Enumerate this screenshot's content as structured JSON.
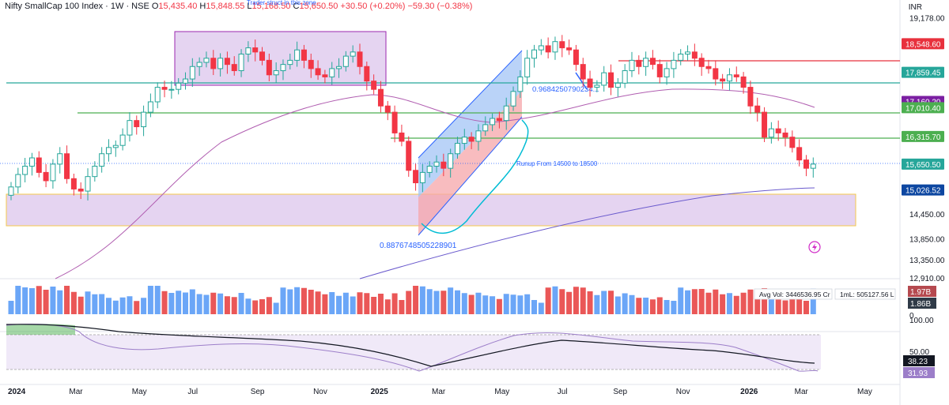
{
  "header": {
    "symbol": "Nifty SmallCap 100 Index · 1W · NSE",
    "o_label": "O",
    "open": "15,435.40",
    "h_label": "H",
    "high": "15,848.55",
    "l_label": "L",
    "low": "15,168.50",
    "c_label": "C",
    "close": "15,650.50",
    "change": "+30.50 (+0.20%)",
    "prev_change": "−59.30 (−0.38%)",
    "top_note": "Trader struct in this zone"
  },
  "currency": "INR",
  "colors": {
    "up": "#26a69a",
    "down": "#f23645",
    "ma_short": "#b05db0",
    "ma_long": "#6a5acd",
    "zone_fill": "#dcc6ec",
    "zone_border": "#f5c94b",
    "channel_blue": "#9cc0f5",
    "channel_red": "#f5a5aa",
    "line_red": "#e8313d",
    "line_teal": "#26a69a",
    "line_green": "#4caf50",
    "price_badge": "#0d47a1"
  },
  "chart_data": {
    "type": "candlestick",
    "ylim": [
      12910,
      19450
    ],
    "price_axis_ticks": [
      "19,178.00",
      "14,450.00",
      "13,850.00",
      "13,350.00",
      "12,910.00"
    ],
    "price_labels": [
      {
        "value": 18548.6,
        "text": "18,548.60",
        "color": "#e8313d"
      },
      {
        "value": 17859.45,
        "text": "17,859.45",
        "color": "#26a69a"
      },
      {
        "value": 17160.2,
        "text": "17,160.20",
        "color": "#7b1fa2"
      },
      {
        "value": 17010.4,
        "text": "17,010.40",
        "color": "#4caf50"
      },
      {
        "value": 16315.7,
        "text": "16,315.70",
        "color": "#4caf50"
      },
      {
        "value": 15650.5,
        "text": "15,650.50",
        "color": "#26a69a"
      },
      {
        "value": 15026.52,
        "text": "15,026.52",
        "color": "#0d47a1"
      }
    ],
    "x_ticks": [
      {
        "i": 0,
        "label": "2024"
      },
      {
        "i": 9,
        "label": "Mar"
      },
      {
        "i": 18,
        "label": "May"
      },
      {
        "i": 26,
        "label": "Jul"
      },
      {
        "i": 35,
        "label": "Sep"
      },
      {
        "i": 44,
        "label": "Nov"
      },
      {
        "i": 52,
        "label": "2025"
      },
      {
        "i": 61,
        "label": "Mar"
      },
      {
        "i": 70,
        "label": "May"
      },
      {
        "i": 79,
        "label": "Jul"
      },
      {
        "i": 87,
        "label": "Sep"
      },
      {
        "i": 96,
        "label": "Nov"
      },
      {
        "i": 105,
        "label": "2026"
      },
      {
        "i": 113,
        "label": "Mar"
      },
      {
        "i": 122,
        "label": "May"
      }
    ],
    "weekly_close": [
      15100,
      15400,
      15600,
      15800,
      15450,
      15250,
      15650,
      15900,
      15300,
      15050,
      15000,
      15350,
      15600,
      15900,
      16050,
      16100,
      16350,
      16700,
      16550,
      16900,
      17150,
      17500,
      17450,
      17450,
      17600,
      17700,
      18000,
      18100,
      18200,
      17950,
      18200,
      18050,
      17900,
      18300,
      18450,
      18350,
      18150,
      17800,
      17900,
      18050,
      18150,
      18400,
      18150,
      17950,
      17800,
      17750,
      17950,
      18000,
      18250,
      18350,
      18000,
      17650,
      17450,
      17050,
      16900,
      16400,
      16200,
      15500,
      15200,
      15450,
      15600,
      15700,
      15550,
      15900,
      16150,
      16300,
      16200,
      16450,
      16600,
      16750,
      16700,
      17050,
      17400,
      17750,
      18200,
      18400,
      18500,
      18350,
      18600,
      18450,
      18400,
      18050,
      17700,
      17500,
      17550,
      17850,
      17500,
      17600,
      17900,
      18150,
      18000,
      18200,
      18050,
      17750,
      17950,
      18150,
      18300,
      18350,
      18200,
      18000,
      17950,
      17700,
      17650,
      17800,
      17750,
      17500,
      17050,
      16900,
      16300,
      16500,
      16400,
      16300,
      16050,
      15750,
      15550,
      15650
    ],
    "volume_labels": {
      "avg_vol": "Avg Vol: 3446536.95 Cr",
      "ml": "1mL: 505127.56 L",
      "v1": "1.97B",
      "v2": "1.86B",
      "zero": "0"
    },
    "indicator": {
      "levels": [
        "100.00",
        "50.00"
      ],
      "values": [
        "38.23",
        "31.93"
      ]
    },
    "annotations": [
      {
        "text": "0.9684250790234..."
      },
      {
        "text": "Runup From 14500 to 18500"
      },
      {
        "text": "0.8876748505228901"
      }
    ]
  }
}
